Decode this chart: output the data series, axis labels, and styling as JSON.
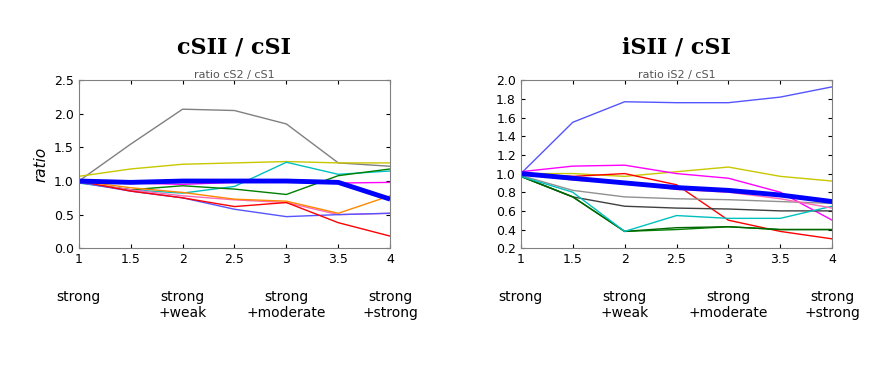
{
  "left_title": "cSII / cSI",
  "right_title": "iSII / cSI",
  "left_subtitle": "ratio cS2 / cS1",
  "right_subtitle": "ratio iS2 / cS1",
  "ylabel": "ratio",
  "x_ticks": [
    1,
    1.5,
    2,
    2.5,
    3,
    3.5,
    4
  ],
  "x_custom_labels": [
    [
      1,
      "strong",
      ""
    ],
    [
      2,
      "strong",
      "+weak"
    ],
    [
      3,
      "strong",
      "+moderate"
    ],
    [
      4,
      "strong",
      "+strong"
    ]
  ],
  "left_ylim": [
    0,
    2.5
  ],
  "right_ylim": [
    0.2,
    2.0
  ],
  "left_yticks": [
    0,
    0.5,
    1.0,
    1.5,
    2.0,
    2.5
  ],
  "right_yticks": [
    0.2,
    0.4,
    0.6,
    0.8,
    1.0,
    1.2,
    1.4,
    1.6,
    1.8,
    2.0
  ],
  "left_lines": [
    {
      "color": "#808080",
      "lw": 1.0,
      "data": [
        1.0,
        1.55,
        2.07,
        2.05,
        1.85,
        1.27,
        1.22
      ]
    },
    {
      "color": "#c8c800",
      "lw": 1.0,
      "data": [
        1.07,
        1.18,
        1.25,
        1.27,
        1.29,
        1.27,
        1.27
      ]
    },
    {
      "color": "#00c0c0",
      "lw": 1.0,
      "data": [
        0.97,
        0.87,
        0.82,
        0.92,
        1.28,
        1.1,
        1.15
      ]
    },
    {
      "color": "#008000",
      "lw": 1.0,
      "data": [
        0.98,
        0.87,
        0.93,
        0.88,
        0.8,
        1.08,
        1.18
      ]
    },
    {
      "color": "#ff00ff",
      "lw": 1.0,
      "data": [
        1.0,
        0.97,
        0.95,
        0.98,
        1.0,
        0.97,
        0.98
      ]
    },
    {
      "color": "#ff69b4",
      "lw": 1.0,
      "data": [
        0.98,
        0.87,
        0.78,
        0.72,
        0.68,
        0.5,
        0.52
      ]
    },
    {
      "color": "#5555ff",
      "lw": 1.0,
      "data": [
        0.98,
        0.85,
        0.75,
        0.58,
        0.47,
        0.5,
        0.52
      ]
    },
    {
      "color": "#ff0000",
      "lw": 1.0,
      "data": [
        1.0,
        0.85,
        0.75,
        0.62,
        0.68,
        0.38,
        0.18
      ]
    },
    {
      "color": "#ff8800",
      "lw": 1.0,
      "data": [
        1.0,
        0.9,
        0.83,
        0.73,
        0.7,
        0.52,
        0.78
      ]
    },
    {
      "color": "#0000ff",
      "lw": 3.5,
      "data": [
        1.0,
        0.98,
        1.0,
        1.0,
        1.0,
        0.98,
        0.73
      ]
    }
  ],
  "right_lines": [
    {
      "color": "#5555ff",
      "lw": 1.0,
      "data": [
        1.0,
        1.55,
        1.77,
        1.76,
        1.76,
        1.82,
        1.93
      ]
    },
    {
      "color": "#c8c800",
      "lw": 1.0,
      "data": [
        1.0,
        1.0,
        0.97,
        1.02,
        1.07,
        0.97,
        0.92
      ]
    },
    {
      "color": "#ff00ff",
      "lw": 1.0,
      "data": [
        1.02,
        1.08,
        1.09,
        1.0,
        0.95,
        0.8,
        0.5
      ]
    },
    {
      "color": "#ff0000",
      "lw": 1.0,
      "data": [
        1.0,
        0.97,
        1.0,
        0.88,
        0.5,
        0.38,
        0.3
      ]
    },
    {
      "color": "#909090",
      "lw": 1.0,
      "data": [
        0.98,
        0.82,
        0.75,
        0.73,
        0.72,
        0.7,
        0.68
      ]
    },
    {
      "color": "#404040",
      "lw": 1.0,
      "data": [
        0.97,
        0.75,
        0.65,
        0.63,
        0.62,
        0.6,
        0.6
      ]
    },
    {
      "color": "#008000",
      "lw": 1.0,
      "data": [
        0.97,
        0.75,
        0.38,
        0.4,
        0.43,
        0.4,
        0.4
      ]
    },
    {
      "color": "#006400",
      "lw": 1.0,
      "data": [
        0.97,
        0.75,
        0.38,
        0.42,
        0.43,
        0.4,
        0.4
      ]
    },
    {
      "color": "#00bfbf",
      "lw": 1.0,
      "data": [
        0.97,
        0.8,
        0.38,
        0.55,
        0.52,
        0.52,
        0.65
      ]
    },
    {
      "color": "#ff69b4",
      "lw": 1.0,
      "data": [
        1.0,
        0.93,
        0.9,
        0.83,
        0.8,
        0.73,
        0.63
      ]
    },
    {
      "color": "#0000ff",
      "lw": 3.5,
      "data": [
        1.0,
        0.95,
        0.9,
        0.85,
        0.82,
        0.77,
        0.7
      ]
    }
  ],
  "plot_bg": "#ffffff",
  "fig_bg": "#ffffff",
  "title_fontsize": 16,
  "subtitle_fontsize": 8,
  "tick_fontsize": 9,
  "ylabel_fontsize": 11,
  "custom_label_fontsize": 10
}
